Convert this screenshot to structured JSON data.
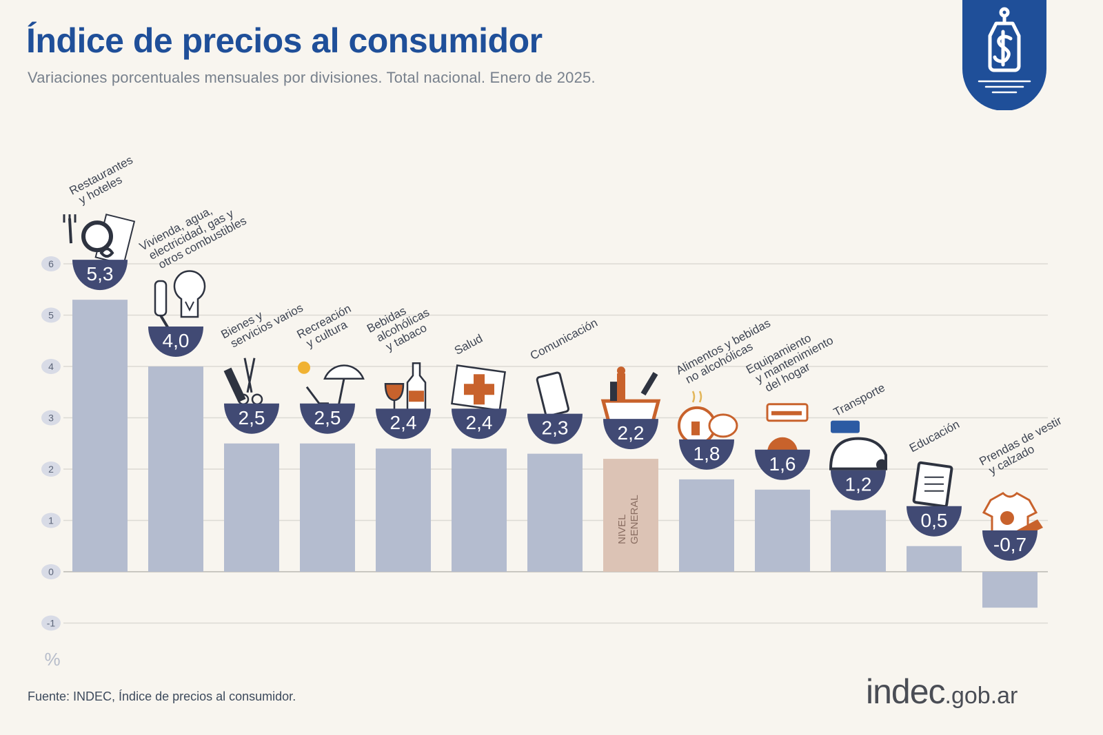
{
  "title": "Índice de precios al consumidor",
  "subtitle": "Variaciones porcentuales mensuales por divisiones. Total nacional. Enero de 2025.",
  "source": "Fuente: INDEC, Índice de precios al consumidor.",
  "brand": {
    "name": "indec",
    "domain": ".gob.ar"
  },
  "colors": {
    "title": "#1f4f99",
    "bar": "#b4bccf",
    "bar_general": "#dcc3b5",
    "value_badge": "#414a74",
    "icon_orange": "#c8622c",
    "gridline": "#dcdad4"
  },
  "icons": [
    "price-tag-dollar-icon",
    "cutlery-plate-icon",
    "lightbulb-plug-icon",
    "comb-scissors-icon",
    "umbrella-chair-icon",
    "wine-bottle-icon",
    "medical-cross-icon",
    "smartphone-icon",
    "shopping-bag-icon",
    "chicken-meal-icon",
    "air-conditioner-icon",
    "car-sube-card-icon",
    "notebook-icon",
    "tshirt-icon"
  ],
  "chart_data": {
    "type": "bar",
    "unit_label": "%",
    "ylim": [
      -1,
      6
    ],
    "yticks": [
      "-1",
      "0",
      "1",
      "2",
      "3",
      "4",
      "5",
      "6"
    ],
    "grid": true,
    "categories": [
      "Restaurantes y hoteles",
      "Vivienda, agua, electricidad, gas y otros combustibles",
      "Bienes y servicios varios",
      "Recreación y cultura",
      "Bebidas alcohólicas y tabaco",
      "Salud",
      "Comunicación",
      "NIVEL GENERAL",
      "Alimentos y bebidas no alcohólicas",
      "Equipamiento y mantenimiento del hogar",
      "Transporte",
      "Educación",
      "Prendas de vestir y calzado"
    ],
    "category_label_lines": [
      [
        "Restaurantes",
        "y hoteles"
      ],
      [
        "Vivienda, agua,",
        "electricidad, gas y",
        "otros combustibles"
      ],
      [
        "Bienes y",
        "servicios varios"
      ],
      [
        "Recreación",
        "y cultura"
      ],
      [
        "Bebidas",
        "alcohólicas",
        "y tabaco"
      ],
      [
        "Salud"
      ],
      [
        "Comunicación"
      ],
      [
        "NIVEL",
        "GENERAL"
      ],
      [
        "Alimentos y bebidas",
        "no alcohólicas"
      ],
      [
        "Equipamiento",
        "y mantenimiento",
        "del hogar"
      ],
      [
        "Transporte"
      ],
      [
        "Educación"
      ],
      [
        "Prendas de vestir",
        "y calzado"
      ]
    ],
    "values": [
      5.3,
      4.0,
      2.5,
      2.5,
      2.4,
      2.4,
      2.3,
      2.2,
      1.8,
      1.6,
      1.2,
      0.5,
      -0.7
    ],
    "value_labels": [
      "5,3",
      "4,0",
      "2,5",
      "2,5",
      "2,4",
      "2,4",
      "2,3",
      "2,2",
      "1,8",
      "1,6",
      "1,2",
      "0,5",
      "-0,7"
    ],
    "highlight_category": "NIVEL GENERAL"
  }
}
